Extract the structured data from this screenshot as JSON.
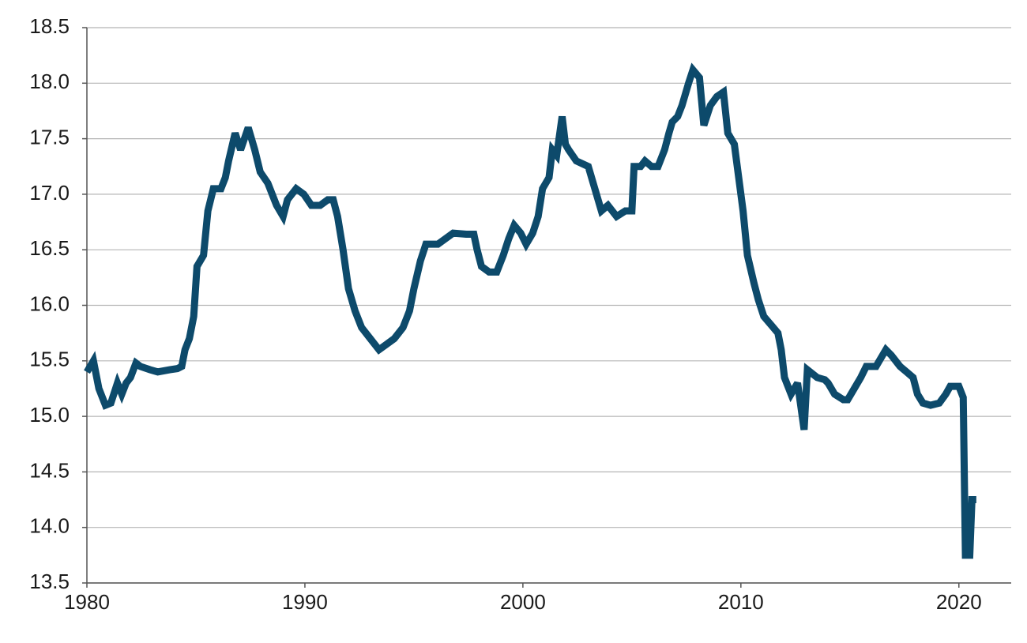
{
  "chart_data": {
    "type": "line",
    "color": "#0d4a6b",
    "grid": true,
    "xlim": [
      1980,
      2022.4
    ],
    "xticks": [
      1980,
      1990,
      2000,
      2010,
      2020
    ],
    "ylim": [
      13.5,
      18.5
    ],
    "yticks": [
      13.5,
      {
        "value": 14,
        "label": "14.0"
      },
      14.5,
      {
        "value": 15,
        "label": "15.0"
      },
      15.5,
      {
        "value": 16,
        "label": "16.0"
      },
      16.5,
      {
        "value": 17,
        "label": "17.0"
      },
      17.5,
      {
        "value": 18,
        "label": "18.0"
      },
      18.5
    ],
    "x": [
      1980.0,
      1980.3,
      1980.55,
      1980.85,
      1981.1,
      1981.4,
      1981.6,
      1981.8,
      1982.0,
      1982.25,
      1982.45,
      1982.9,
      1983.25,
      1983.8,
      1984.15,
      1984.35,
      1984.5,
      1984.7,
      1984.9,
      1985.05,
      1985.35,
      1985.55,
      1985.8,
      1986.15,
      1986.35,
      1986.5,
      1986.8,
      1987.05,
      1987.4,
      1987.7,
      1987.95,
      1988.3,
      1988.7,
      1989.0,
      1989.2,
      1989.6,
      1989.95,
      1990.3,
      1990.7,
      1991.05,
      1991.3,
      1991.5,
      1991.75,
      1992.0,
      1992.3,
      1992.6,
      1993.0,
      1993.4,
      1993.75,
      1994.1,
      1994.5,
      1994.8,
      1995.0,
      1995.3,
      1995.55,
      1996.1,
      1996.45,
      1996.8,
      1997.4,
      1997.75,
      1997.9,
      1998.1,
      1998.45,
      1998.8,
      1999.1,
      1999.35,
      1999.6,
      1999.9,
      2000.15,
      2000.45,
      2000.7,
      2000.9,
      2001.2,
      2001.35,
      2001.55,
      2001.8,
      2001.95,
      2002.1,
      2002.45,
      2003.0,
      2003.3,
      2003.6,
      2003.9,
      2004.3,
      2004.7,
      2005.0,
      2005.1,
      2005.4,
      2005.6,
      2005.9,
      2006.2,
      2006.5,
      2006.7,
      2006.85,
      2007.1,
      2007.3,
      2007.6,
      2007.8,
      2008.1,
      2008.3,
      2008.6,
      2008.9,
      2009.2,
      2009.4,
      2009.7,
      2009.9,
      2010.1,
      2010.3,
      2010.6,
      2010.8,
      2011.05,
      2011.4,
      2011.7,
      2011.85,
      2012.0,
      2012.3,
      2012.6,
      2012.9,
      2013.05,
      2013.5,
      2013.85,
      2014.0,
      2014.3,
      2014.7,
      2014.9,
      2015.2,
      2015.5,
      2015.75,
      2016.2,
      2016.5,
      2016.65,
      2016.9,
      2017.3,
      2017.6,
      2017.9,
      2018.1,
      2018.35,
      2018.7,
      2019.1,
      2019.4,
      2019.6,
      2020.0,
      2020.2,
      2020.3,
      2020.5,
      2020.6,
      2020.8
    ],
    "values": [
      15.4,
      15.5,
      15.25,
      15.1,
      15.12,
      15.3,
      15.2,
      15.3,
      15.35,
      15.48,
      15.45,
      15.42,
      15.4,
      15.42,
      15.43,
      15.45,
      15.6,
      15.7,
      15.9,
      16.35,
      16.45,
      16.85,
      17.05,
      17.05,
      17.15,
      17.3,
      17.55,
      17.4,
      17.6,
      17.4,
      17.2,
      17.1,
      16.9,
      16.8,
      16.95,
      17.05,
      17.0,
      16.9,
      16.9,
      16.95,
      16.95,
      16.8,
      16.5,
      16.15,
      15.95,
      15.8,
      15.7,
      15.6,
      15.65,
      15.7,
      15.8,
      15.95,
      16.15,
      16.4,
      16.55,
      16.55,
      16.6,
      16.65,
      16.64,
      16.64,
      16.5,
      16.35,
      16.3,
      16.3,
      16.45,
      16.6,
      16.72,
      16.65,
      16.55,
      16.65,
      16.8,
      17.05,
      17.15,
      17.4,
      17.35,
      17.7,
      17.45,
      17.4,
      17.3,
      17.25,
      17.05,
      16.85,
      16.9,
      16.8,
      16.85,
      16.85,
      17.25,
      17.25,
      17.3,
      17.25,
      17.25,
      17.4,
      17.55,
      17.65,
      17.7,
      17.8,
      18.0,
      18.12,
      18.05,
      17.62,
      17.8,
      17.88,
      17.92,
      17.55,
      17.45,
      17.15,
      16.85,
      16.45,
      16.2,
      16.05,
      15.9,
      15.82,
      15.75,
      15.6,
      15.35,
      15.2,
      15.3,
      14.88,
      15.42,
      15.35,
      15.33,
      15.3,
      15.2,
      15.15,
      15.15,
      15.25,
      15.35,
      15.45,
      15.45,
      15.55,
      15.6,
      15.55,
      15.45,
      15.4,
      15.35,
      15.2,
      15.12,
      15.1,
      15.12,
      15.2,
      15.27,
      15.27,
      15.17,
      13.75,
      13.75,
      14.25,
      14.25
    ]
  }
}
